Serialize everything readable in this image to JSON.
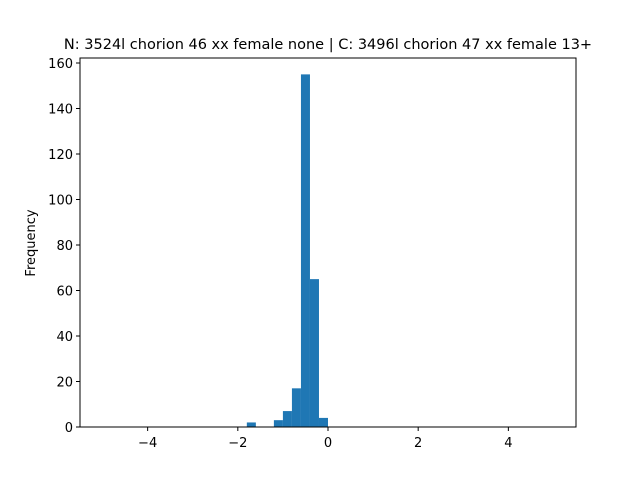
{
  "chart_data": {
    "type": "histogram",
    "title": "N: 3524l chorion 46 xx female none | C: 3496l chorion 47 xx female 13+",
    "ylabel": "Frequency",
    "bins": [
      -1.8,
      -1.6,
      -1.4,
      -1.2,
      -1.0,
      -0.8,
      -0.6,
      -0.4,
      -0.2,
      0
    ],
    "values": [
      2,
      0,
      0,
      3,
      7,
      17,
      155,
      65,
      4
    ],
    "color": "#1f77b4",
    "xlim": [
      -5.5,
      5.5
    ],
    "xticks": [
      {
        "value": -4,
        "label": "−4"
      },
      {
        "value": -2,
        "label": "−2"
      },
      0,
      2,
      4
    ],
    "ylim": [
      0,
      162.2
    ],
    "yticks": [
      0,
      20,
      40,
      60,
      80,
      100,
      120,
      140,
      160
    ]
  }
}
